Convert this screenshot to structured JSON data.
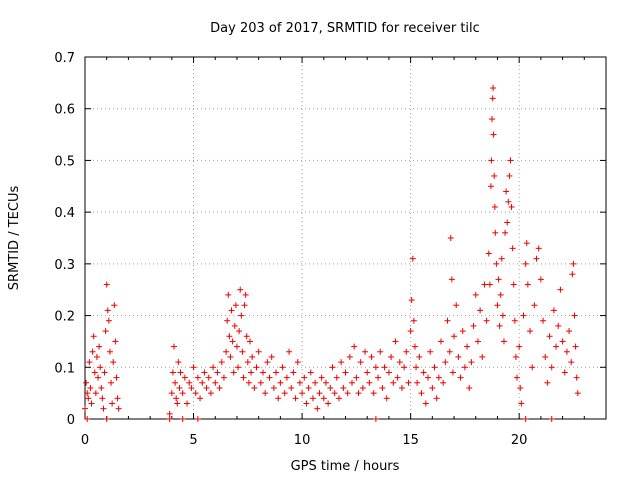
{
  "chart_data": {
    "type": "scatter",
    "title": "Day 203 of 2017, SRMTID for receiver tilc",
    "xlabel": "GPS time / hours",
    "ylabel": "SRMTID / TECUs",
    "xlim": [
      0,
      24
    ],
    "ylim": [
      0,
      0.7
    ],
    "grid": true,
    "marker": "+",
    "series_color": "#ee0000",
    "xticks": [
      "0",
      "5",
      "10",
      "15",
      "20"
    ],
    "yticks": [
      "0",
      "0.1",
      "0.2",
      "0.3",
      "0.4",
      "0.5",
      "0.6",
      "0.7"
    ],
    "x_tick_values": [
      0,
      5,
      10,
      15,
      20
    ],
    "y_tick_values": [
      0,
      0.1,
      0.2,
      0.3,
      0.4,
      0.5,
      0.6,
      0.7
    ],
    "series": [
      {
        "name": "SRMTID",
        "points": [
          [
            0.0,
            0.02
          ],
          [
            0.05,
            0.07
          ],
          [
            0.1,
            0.05
          ],
          [
            0.15,
            0.04
          ],
          [
            0.2,
            0.11
          ],
          [
            0.25,
            0.06
          ],
          [
            0.3,
            0.03
          ],
          [
            0.35,
            0.13
          ],
          [
            0.4,
            0.16
          ],
          [
            0.45,
            0.09
          ],
          [
            0.5,
            0.05
          ],
          [
            0.55,
            0.12
          ],
          [
            0.6,
            0.08
          ],
          [
            0.65,
            0.14
          ],
          [
            0.7,
            0.1
          ],
          [
            0.75,
            0.06
          ],
          [
            0.8,
            0.04
          ],
          [
            0.85,
            0.02
          ],
          [
            0.9,
            0.09
          ],
          [
            0.95,
            0.17
          ],
          [
            1.0,
            0.26
          ],
          [
            1.05,
            0.21
          ],
          [
            1.1,
            0.19
          ],
          [
            1.15,
            0.13
          ],
          [
            1.2,
            0.07
          ],
          [
            1.25,
            0.03
          ],
          [
            1.3,
            0.11
          ],
          [
            1.35,
            0.22
          ],
          [
            1.4,
            0.15
          ],
          [
            1.45,
            0.08
          ],
          [
            1.5,
            0.04
          ],
          [
            1.55,
            0.02
          ],
          [
            3.9,
            0.01
          ],
          [
            4.0,
            0.05
          ],
          [
            4.05,
            0.09
          ],
          [
            4.1,
            0.14
          ],
          [
            4.15,
            0.07
          ],
          [
            4.2,
            0.04
          ],
          [
            4.25,
            0.03
          ],
          [
            4.3,
            0.11
          ],
          [
            4.35,
            0.06
          ],
          [
            4.4,
            0.09
          ],
          [
            4.5,
            0.05
          ],
          [
            4.6,
            0.08
          ],
          [
            4.7,
            0.03
          ],
          [
            4.8,
            0.07
          ],
          [
            4.9,
            0.06
          ],
          [
            5.0,
            0.1
          ],
          [
            5.1,
            0.05
          ],
          [
            5.2,
            0.08
          ],
          [
            5.3,
            0.04
          ],
          [
            5.4,
            0.07
          ],
          [
            5.5,
            0.09
          ],
          [
            5.6,
            0.06
          ],
          [
            5.7,
            0.08
          ],
          [
            5.8,
            0.05
          ],
          [
            5.9,
            0.1
          ],
          [
            6.0,
            0.07
          ],
          [
            6.1,
            0.09
          ],
          [
            6.2,
            0.06
          ],
          [
            6.3,
            0.11
          ],
          [
            6.4,
            0.08
          ],
          [
            6.5,
            0.13
          ],
          [
            6.55,
            0.19
          ],
          [
            6.6,
            0.24
          ],
          [
            6.65,
            0.16
          ],
          [
            6.7,
            0.12
          ],
          [
            6.75,
            0.21
          ],
          [
            6.8,
            0.15
          ],
          [
            6.85,
            0.09
          ],
          [
            6.9,
            0.18
          ],
          [
            6.95,
            0.22
          ],
          [
            7.0,
            0.14
          ],
          [
            7.05,
            0.1
          ],
          [
            7.1,
            0.17
          ],
          [
            7.15,
            0.25
          ],
          [
            7.2,
            0.2
          ],
          [
            7.25,
            0.13
          ],
          [
            7.3,
            0.08
          ],
          [
            7.35,
            0.22
          ],
          [
            7.4,
            0.24
          ],
          [
            7.45,
            0.16
          ],
          [
            7.5,
            0.11
          ],
          [
            7.55,
            0.07
          ],
          [
            7.6,
            0.15
          ],
          [
            7.65,
            0.09
          ],
          [
            7.7,
            0.12
          ],
          [
            7.8,
            0.06
          ],
          [
            7.9,
            0.1
          ],
          [
            8.0,
            0.13
          ],
          [
            8.1,
            0.07
          ],
          [
            8.2,
            0.09
          ],
          [
            8.3,
            0.05
          ],
          [
            8.4,
            0.11
          ],
          [
            8.5,
            0.08
          ],
          [
            8.6,
            0.12
          ],
          [
            8.7,
            0.06
          ],
          [
            8.8,
            0.09
          ],
          [
            8.9,
            0.04
          ],
          [
            9.0,
            0.07
          ],
          [
            9.1,
            0.1
          ],
          [
            9.2,
            0.05
          ],
          [
            9.3,
            0.08
          ],
          [
            9.4,
            0.13
          ],
          [
            9.5,
            0.06
          ],
          [
            9.6,
            0.09
          ],
          [
            9.7,
            0.04
          ],
          [
            9.8,
            0.11
          ],
          [
            9.9,
            0.07
          ],
          [
            10.0,
            0.05
          ],
          [
            10.1,
            0.08
          ],
          [
            10.2,
            0.03
          ],
          [
            10.3,
            0.06
          ],
          [
            10.4,
            0.09
          ],
          [
            10.5,
            0.04
          ],
          [
            10.6,
            0.07
          ],
          [
            10.7,
            0.02
          ],
          [
            10.8,
            0.05
          ],
          [
            10.9,
            0.08
          ],
          [
            11.0,
            0.04
          ],
          [
            11.1,
            0.07
          ],
          [
            11.2,
            0.03
          ],
          [
            11.3,
            0.06
          ],
          [
            11.4,
            0.1
          ],
          [
            11.5,
            0.05
          ],
          [
            11.6,
            0.08
          ],
          [
            11.7,
            0.04
          ],
          [
            11.8,
            0.11
          ],
          [
            11.9,
            0.06
          ],
          [
            12.0,
            0.09
          ],
          [
            12.1,
            0.05
          ],
          [
            12.2,
            0.12
          ],
          [
            12.3,
            0.07
          ],
          [
            12.4,
            0.14
          ],
          [
            12.5,
            0.08
          ],
          [
            12.6,
            0.05
          ],
          [
            12.7,
            0.11
          ],
          [
            12.8,
            0.06
          ],
          [
            12.9,
            0.13
          ],
          [
            13.0,
            0.09
          ],
          [
            13.1,
            0.07
          ],
          [
            13.2,
            0.12
          ],
          [
            13.3,
            0.05
          ],
          [
            13.4,
            0.1
          ],
          [
            13.5,
            0.08
          ],
          [
            13.6,
            0.13
          ],
          [
            13.7,
            0.06
          ],
          [
            13.8,
            0.1
          ],
          [
            13.9,
            0.04
          ],
          [
            14.0,
            0.09
          ],
          [
            14.1,
            0.12
          ],
          [
            14.2,
            0.07
          ],
          [
            14.3,
            0.15
          ],
          [
            14.4,
            0.08
          ],
          [
            14.5,
            0.11
          ],
          [
            14.6,
            0.06
          ],
          [
            14.7,
            0.1
          ],
          [
            14.8,
            0.13
          ],
          [
            14.9,
            0.07
          ],
          [
            15.0,
            0.17
          ],
          [
            15.05,
            0.23
          ],
          [
            15.1,
            0.31
          ],
          [
            15.15,
            0.19
          ],
          [
            15.2,
            0.14
          ],
          [
            15.25,
            0.1
          ],
          [
            15.3,
            0.07
          ],
          [
            15.4,
            0.12
          ],
          [
            15.5,
            0.05
          ],
          [
            15.6,
            0.09
          ],
          [
            15.7,
            0.03
          ],
          [
            15.8,
            0.08
          ],
          [
            15.9,
            0.13
          ],
          [
            16.0,
            0.06
          ],
          [
            16.1,
            0.1
          ],
          [
            16.2,
            0.04
          ],
          [
            16.3,
            0.08
          ],
          [
            16.4,
            0.15
          ],
          [
            16.5,
            0.07
          ],
          [
            16.6,
            0.11
          ],
          [
            16.7,
            0.19
          ],
          [
            16.8,
            0.13
          ],
          [
            16.85,
            0.35
          ],
          [
            16.9,
            0.27
          ],
          [
            16.95,
            0.09
          ],
          [
            17.0,
            0.16
          ],
          [
            17.1,
            0.22
          ],
          [
            17.2,
            0.12
          ],
          [
            17.3,
            0.08
          ],
          [
            17.4,
            0.17
          ],
          [
            17.5,
            0.1
          ],
          [
            17.6,
            0.14
          ],
          [
            17.7,
            0.06
          ],
          [
            17.8,
            0.11
          ],
          [
            17.9,
            0.18
          ],
          [
            18.0,
            0.24
          ],
          [
            18.1,
            0.15
          ],
          [
            18.2,
            0.21
          ],
          [
            18.3,
            0.12
          ],
          [
            18.4,
            0.26
          ],
          [
            18.5,
            0.19
          ],
          [
            18.6,
            0.32
          ],
          [
            18.65,
            0.26
          ],
          [
            18.7,
            0.45
          ],
          [
            18.72,
            0.5
          ],
          [
            18.75,
            0.58
          ],
          [
            18.78,
            0.62
          ],
          [
            18.8,
            0.64
          ],
          [
            18.82,
            0.55
          ],
          [
            18.85,
            0.47
          ],
          [
            18.88,
            0.41
          ],
          [
            18.9,
            0.36
          ],
          [
            18.95,
            0.3
          ],
          [
            19.0,
            0.22
          ],
          [
            19.05,
            0.27
          ],
          [
            19.1,
            0.18
          ],
          [
            19.15,
            0.24
          ],
          [
            19.2,
            0.31
          ],
          [
            19.25,
            0.2
          ],
          [
            19.3,
            0.15
          ],
          [
            19.35,
            0.36
          ],
          [
            19.4,
            0.44
          ],
          [
            19.45,
            0.38
          ],
          [
            19.5,
            0.42
          ],
          [
            19.55,
            0.47
          ],
          [
            19.6,
            0.5
          ],
          [
            19.65,
            0.41
          ],
          [
            19.7,
            0.33
          ],
          [
            19.75,
            0.26
          ],
          [
            19.8,
            0.19
          ],
          [
            19.85,
            0.12
          ],
          [
            19.9,
            0.08
          ],
          [
            20.0,
            0.14
          ],
          [
            20.05,
            0.06
          ],
          [
            20.1,
            0.03
          ],
          [
            20.2,
            0.2
          ],
          [
            20.3,
            0.3
          ],
          [
            20.35,
            0.34
          ],
          [
            20.4,
            0.26
          ],
          [
            20.5,
            0.17
          ],
          [
            20.6,
            0.1
          ],
          [
            20.7,
            0.22
          ],
          [
            20.8,
            0.31
          ],
          [
            20.9,
            0.33
          ],
          [
            21.0,
            0.27
          ],
          [
            21.1,
            0.19
          ],
          [
            21.2,
            0.12
          ],
          [
            21.3,
            0.07
          ],
          [
            21.4,
            0.16
          ],
          [
            21.5,
            0.1
          ],
          [
            21.6,
            0.21
          ],
          [
            21.7,
            0.14
          ],
          [
            21.8,
            0.18
          ],
          [
            21.9,
            0.25
          ],
          [
            22.0,
            0.15
          ],
          [
            22.1,
            0.09
          ],
          [
            22.2,
            0.13
          ],
          [
            22.3,
            0.17
          ],
          [
            22.4,
            0.11
          ],
          [
            22.45,
            0.28
          ],
          [
            22.5,
            0.3
          ],
          [
            22.55,
            0.2
          ],
          [
            22.6,
            0.14
          ],
          [
            22.65,
            0.08
          ],
          [
            22.7,
            0.05
          ],
          [
            0.1,
            0.0
          ],
          [
            1.0,
            0.0
          ],
          [
            3.9,
            0.0
          ],
          [
            4.5,
            0.0
          ],
          [
            5.2,
            0.0
          ],
          [
            13.4,
            0.0
          ],
          [
            20.3,
            0.0
          ],
          [
            21.5,
            0.0
          ]
        ]
      }
    ]
  }
}
